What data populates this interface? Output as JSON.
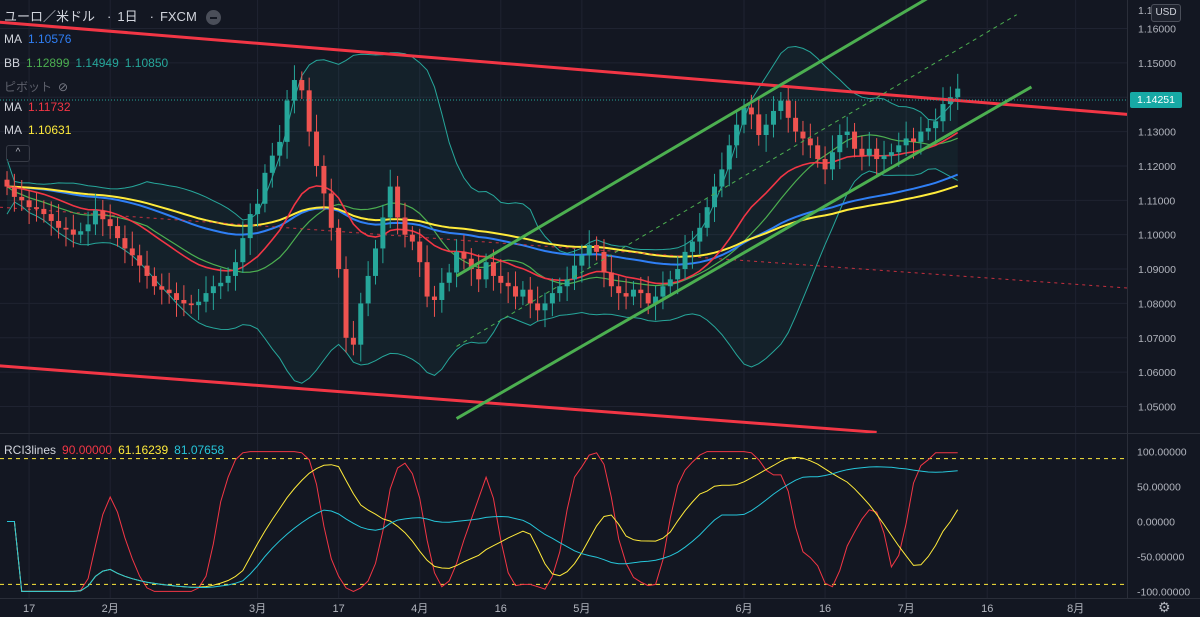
{
  "header": {
    "symbol": "ユーロ／米ドル",
    "interval": "1日",
    "source": "FXCM"
  },
  "legend": {
    "ma1": {
      "label": "MA",
      "value": "1.10576",
      "color": "#2f7ff5"
    },
    "bb": {
      "label": "BB",
      "values": [
        "1.12899",
        "1.14949",
        "1.10850"
      ],
      "color": "#4caf50"
    },
    "pivot": {
      "label": "ピボット"
    },
    "ma2": {
      "label": "MA",
      "value": "1.11732",
      "color": "#f23645"
    },
    "ma3": {
      "label": "MA",
      "value": "1.10631",
      "color": "#ffeb3b"
    },
    "rci": {
      "label": "RCI3lines",
      "values": [
        "90.00000",
        "61.16239",
        "81.07658"
      ],
      "colors": [
        "#f23645",
        "#ffeb3b",
        "#26c6da"
      ]
    }
  },
  "price_axis": {
    "currency": "USD",
    "last_price": "1.14251",
    "top_label": "1.1"
  },
  "ui": {
    "collapse": "^"
  },
  "chart_data": [
    {
      "type": "candlestick",
      "title": "ユーロ／米ドル 1日 FXCM",
      "ylim": [
        1.0423,
        1.1677
      ],
      "yticks": [
        1.05,
        1.06,
        1.07,
        1.08,
        1.09,
        1.1,
        1.11,
        1.12,
        1.13,
        1.14,
        1.15,
        1.16
      ],
      "ytick_labels": [
        "1.05000",
        "1.06000",
        "1.07000",
        "1.08000",
        "1.09000",
        "1.10000",
        "1.11000",
        "1.12000",
        "1.13000",
        "1.14000",
        "1.15000",
        "1.16000"
      ],
      "xticks": [
        {
          "label": "17",
          "pos": 3
        },
        {
          "label": "2月",
          "pos": 14
        },
        {
          "label": "3月",
          "pos": 34
        },
        {
          "label": "17",
          "pos": 45
        },
        {
          "label": "4月",
          "pos": 56
        },
        {
          "label": "16",
          "pos": 67
        },
        {
          "label": "5月",
          "pos": 78
        },
        {
          "label": "6月",
          "pos": 100
        },
        {
          "label": "16",
          "pos": 111
        },
        {
          "label": "7月",
          "pos": 122
        },
        {
          "label": "16",
          "pos": 133
        },
        {
          "label": "8月",
          "pos": 145
        }
      ],
      "closes": [
        1.114,
        1.111,
        1.11,
        1.108,
        1.1075,
        1.106,
        1.104,
        1.102,
        1.1015,
        1.1,
        1.101,
        1.103,
        1.107,
        1.1045,
        1.1025,
        1.099,
        1.096,
        1.094,
        1.091,
        1.088,
        1.085,
        1.084,
        1.083,
        1.081,
        1.08,
        1.0795,
        1.0805,
        1.083,
        1.085,
        1.086,
        1.088,
        1.092,
        1.099,
        1.106,
        1.109,
        1.118,
        1.123,
        1.127,
        1.139,
        1.145,
        1.142,
        1.13,
        1.12,
        1.112,
        1.102,
        1.09,
        1.07,
        1.068,
        1.08,
        1.088,
        1.096,
        1.105,
        1.114,
        1.105,
        1.1,
        1.098,
        1.092,
        1.082,
        1.081,
        1.086,
        1.089,
        1.095,
        1.093,
        1.09,
        1.087,
        1.092,
        1.088,
        1.086,
        1.085,
        1.082,
        1.084,
        1.08,
        1.078,
        1.08,
        1.083,
        1.085,
        1.087,
        1.091,
        1.094,
        1.097,
        1.095,
        1.089,
        1.085,
        1.083,
        1.082,
        1.084,
        1.083,
        1.08,
        1.082,
        1.085,
        1.087,
        1.09,
        1.095,
        1.098,
        1.102,
        1.108,
        1.114,
        1.119,
        1.126,
        1.132,
        1.137,
        1.135,
        1.129,
        1.132,
        1.136,
        1.139,
        1.134,
        1.13,
        1.128,
        1.126,
        1.122,
        1.119,
        1.124,
        1.129,
        1.13,
        1.125,
        1.123,
        1.125,
        1.122,
        1.123,
        1.124,
        1.126,
        1.128,
        1.127,
        1.13,
        1.131,
        1.133,
        1.138,
        1.14,
        1.1425
      ],
      "series": [
        {
          "name": "MA",
          "value": 1.10576
        },
        {
          "name": "BB",
          "values": [
            1.12899,
            1.14949,
            1.1085
          ]
        },
        {
          "name": "MA",
          "value": 1.11732
        },
        {
          "name": "MA",
          "value": 1.10631
        }
      ],
      "trendlines": [
        {
          "color": "#f23645",
          "from": [
            -2,
            1.162
          ],
          "to": [
            152,
            1.135
          ]
        },
        {
          "color": "#f23645",
          "from": [
            -2,
            1.062
          ],
          "to": [
            118,
            1.0425
          ]
        },
        {
          "color": "#4caf50",
          "from": [
            61,
            1.0465
          ],
          "to": [
            139,
            1.143
          ]
        },
        {
          "color": "#4caf50",
          "from": [
            61,
            1.088
          ],
          "to": [
            133,
            1.179
          ]
        }
      ]
    },
    {
      "type": "line",
      "title": "RCI3lines",
      "ylim": [
        -108,
        108
      ],
      "yticks": [
        100,
        50,
        0,
        -50,
        -100
      ],
      "ytick_labels": [
        "100.00000",
        "50.00000",
        "0.00000",
        "-50.00000",
        "-100.00000"
      ],
      "levels": [
        90,
        -90
      ],
      "series": [
        {
          "name": "RCI3lines",
          "color": "#f23645",
          "last": 90.0
        },
        {
          "name": "RCI3lines",
          "color": "#ffeb3b",
          "last": 61.16239
        },
        {
          "name": "RCI3lines",
          "color": "#26c6da",
          "last": 81.07658
        }
      ]
    }
  ]
}
